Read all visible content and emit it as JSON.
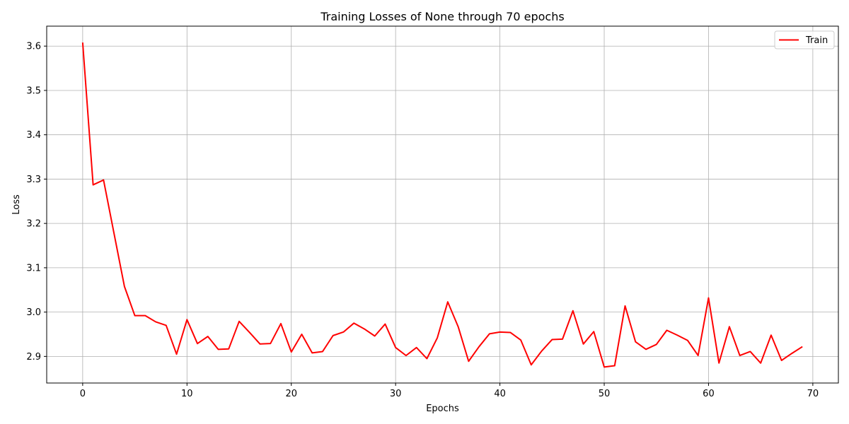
{
  "chart_data": {
    "type": "line",
    "title": "Training Losses of None through 70 epochs",
    "xlabel": "Epochs",
    "ylabel": "Loss",
    "xlim": [
      -3.45,
      72.45
    ],
    "ylim": [
      2.84,
      3.645
    ],
    "xticks": [
      0,
      10,
      20,
      30,
      40,
      50,
      60,
      70
    ],
    "yticks": [
      2.9,
      3.0,
      3.1,
      3.2,
      3.3,
      3.4,
      3.5,
      3.6
    ],
    "xtick_labels": [
      "0",
      "10",
      "20",
      "30",
      "40",
      "50",
      "60",
      "70"
    ],
    "ytick_labels": [
      "2.9",
      "3.0",
      "3.1",
      "3.2",
      "3.3",
      "3.4",
      "3.5",
      "3.6"
    ],
    "grid": true,
    "legend_position": "top-right",
    "series": [
      {
        "name": "Train",
        "color": "#ff0000",
        "x": [
          0,
          1,
          2,
          3,
          4,
          5,
          6,
          7,
          8,
          9,
          10,
          11,
          12,
          13,
          14,
          15,
          16,
          17,
          18,
          19,
          20,
          21,
          22,
          23,
          24,
          25,
          26,
          27,
          28,
          29,
          30,
          31,
          32,
          33,
          34,
          35,
          36,
          37,
          38,
          39,
          40,
          41,
          42,
          43,
          44,
          45,
          46,
          47,
          48,
          49,
          50,
          51,
          52,
          53,
          54,
          55,
          56,
          57,
          58,
          59,
          60,
          61,
          62,
          63,
          64,
          65,
          66,
          67,
          68,
          69
        ],
        "values": [
          3.608,
          3.287,
          3.298,
          3.178,
          3.058,
          2.992,
          2.992,
          2.978,
          2.97,
          2.905,
          2.983,
          2.929,
          2.945,
          2.916,
          2.917,
          2.979,
          2.954,
          2.928,
          2.929,
          2.974,
          2.91,
          2.95,
          2.908,
          2.911,
          2.947,
          2.955,
          2.975,
          2.962,
          2.946,
          2.973,
          2.92,
          2.902,
          2.92,
          2.895,
          2.942,
          3.023,
          2.967,
          2.889,
          2.922,
          2.951,
          2.955,
          2.954,
          2.937,
          2.881,
          2.912,
          2.938,
          2.939,
          3.003,
          2.928,
          2.956,
          2.876,
          2.879,
          3.014,
          2.933,
          2.916,
          2.927,
          2.959,
          2.948,
          2.936,
          2.902,
          3.032,
          2.885,
          2.967,
          2.902,
          2.911,
          2.885,
          2.948,
          2.891,
          2.907,
          2.922
        ]
      }
    ]
  }
}
